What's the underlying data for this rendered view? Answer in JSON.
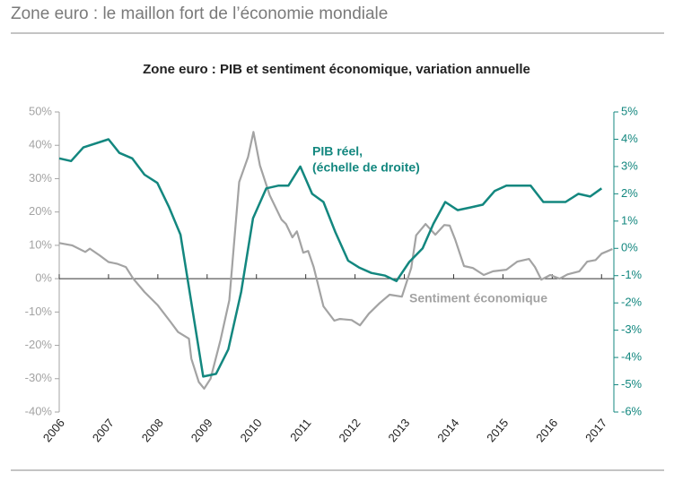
{
  "header": {
    "title": "Zone euro : le maillon fort de l’économie mondiale"
  },
  "chart_data": {
    "type": "line",
    "title": "Zone euro : PIB et sentiment économique, variation annuelle",
    "annotations": [
      "(échelle de droite)"
    ],
    "xlim": [
      2006,
      2017.25
    ],
    "xticks": [
      2006,
      2007,
      2008,
      2009,
      2010,
      2011,
      2012,
      2013,
      2014,
      2015,
      2016,
      2017
    ],
    "ylim": [
      -40,
      50
    ],
    "yticks": [
      {
        "value": 50,
        "label": "50%"
      },
      {
        "value": 40,
        "label": "40%"
      },
      {
        "value": 30,
        "label": "30%"
      },
      {
        "value": 20,
        "label": "20%"
      },
      {
        "value": 10,
        "label": "10%"
      },
      {
        "value": 0,
        "label": "0%"
      },
      {
        "value": -10,
        "label": "-10%"
      },
      {
        "value": -20,
        "label": "-20%"
      },
      {
        "value": -30,
        "label": "-30%"
      },
      {
        "value": -40,
        "label": "-40%"
      }
    ],
    "y2lim": [
      -6,
      5
    ],
    "y2ticks": [
      {
        "value": 5,
        "label": "5%"
      },
      {
        "value": 4,
        "label": "4%"
      },
      {
        "value": 3,
        "label": "3%"
      },
      {
        "value": 2,
        "label": "2%"
      },
      {
        "value": 1,
        "label": "1%"
      },
      {
        "value": 0,
        "label": "0%"
      },
      {
        "value": -1,
        "label": "-1%"
      },
      {
        "value": -2,
        "label": "-2%"
      },
      {
        "value": -3,
        "label": "-3%"
      },
      {
        "value": -4,
        "label": "-4%"
      },
      {
        "value": -5,
        "label": "-5%"
      },
      {
        "value": -6,
        "label": "-6%"
      }
    ],
    "series": [
      {
        "name": "Sentiment économique",
        "color": "#a3a3a3",
        "axis": "y",
        "x": [
          2006.0,
          2006.26,
          2006.53,
          2006.62,
          2006.82,
          2007.0,
          2007.17,
          2007.35,
          2007.5,
          2007.73,
          2008.0,
          2008.26,
          2008.41,
          2008.63,
          2008.68,
          2008.83,
          2008.94,
          2009.07,
          2009.27,
          2009.45,
          2009.65,
          2009.83,
          2009.94,
          2010.07,
          2010.27,
          2010.51,
          2010.6,
          2010.73,
          2010.82,
          2010.95,
          2011.05,
          2011.16,
          2011.36,
          2011.58,
          2011.69,
          2011.93,
          2012.1,
          2012.28,
          2012.5,
          2012.7,
          2012.95,
          2013.14,
          2013.24,
          2013.43,
          2013.63,
          2013.81,
          2013.92,
          2014.03,
          2014.21,
          2014.39,
          2014.61,
          2014.8,
          2015.07,
          2015.29,
          2015.53,
          2015.65,
          2015.78,
          2015.96,
          2016.15,
          2016.31,
          2016.55,
          2016.71,
          2016.88,
          2017.0,
          2017.13,
          2017.22
        ],
        "values": [
          10.7,
          10,
          8,
          9,
          7,
          5,
          4.5,
          3.5,
          0,
          -4,
          -8,
          -13,
          -16,
          -18,
          -24,
          -31,
          -33,
          -30,
          -18.5,
          -6.5,
          29,
          36.5,
          44,
          34,
          25,
          17.7,
          16.4,
          12.4,
          14.2,
          7.8,
          8.3,
          3.5,
          -8.3,
          -12.6,
          -12.1,
          -12.4,
          -14,
          -10.5,
          -7.3,
          -4.8,
          -5.4,
          3.2,
          13,
          16.4,
          13.2,
          16.1,
          15.9,
          11.8,
          3.8,
          3.2,
          1.1,
          2.2,
          2.7,
          5.1,
          5.9,
          3.5,
          -0.3,
          1.1,
          0,
          1.3,
          2.2,
          5.1,
          5.6,
          7.5,
          8.3,
          8.9
        ]
      },
      {
        "name": "PIB réel,",
        "color": "#13877f",
        "axis": "y2",
        "x": [
          2006.0,
          2006.24,
          2006.49,
          2007.0,
          2007.22,
          2007.48,
          2007.73,
          2007.99,
          2008.23,
          2008.46,
          2008.92,
          2009.18,
          2009.43,
          2009.69,
          2009.93,
          2010.2,
          2010.45,
          2010.65,
          2010.89,
          2011.13,
          2011.36,
          2011.6,
          2011.86,
          2012.08,
          2012.33,
          2012.61,
          2012.84,
          2013.1,
          2013.37,
          2013.59,
          2013.83,
          2014.08,
          2014.34,
          2014.59,
          2014.83,
          2015.07,
          2015.34,
          2015.56,
          2015.82,
          2016.05,
          2016.27,
          2016.53,
          2016.77,
          2017.0
        ],
        "values": [
          3.3,
          3.2,
          3.7,
          4.0,
          3.5,
          3.3,
          2.7,
          2.4,
          1.5,
          0.5,
          -4.7,
          -4.6,
          -3.7,
          -1.6,
          1.1,
          2.2,
          2.3,
          2.3,
          3.0,
          2.0,
          1.7,
          0.6,
          -0.45,
          -0.7,
          -0.9,
          -1.0,
          -1.2,
          -0.5,
          0.0,
          0.9,
          1.7,
          1.4,
          1.5,
          1.6,
          2.1,
          2.3,
          2.3,
          2.3,
          1.7,
          1.7,
          1.7,
          2.0,
          1.9,
          2.2
        ]
      }
    ]
  }
}
